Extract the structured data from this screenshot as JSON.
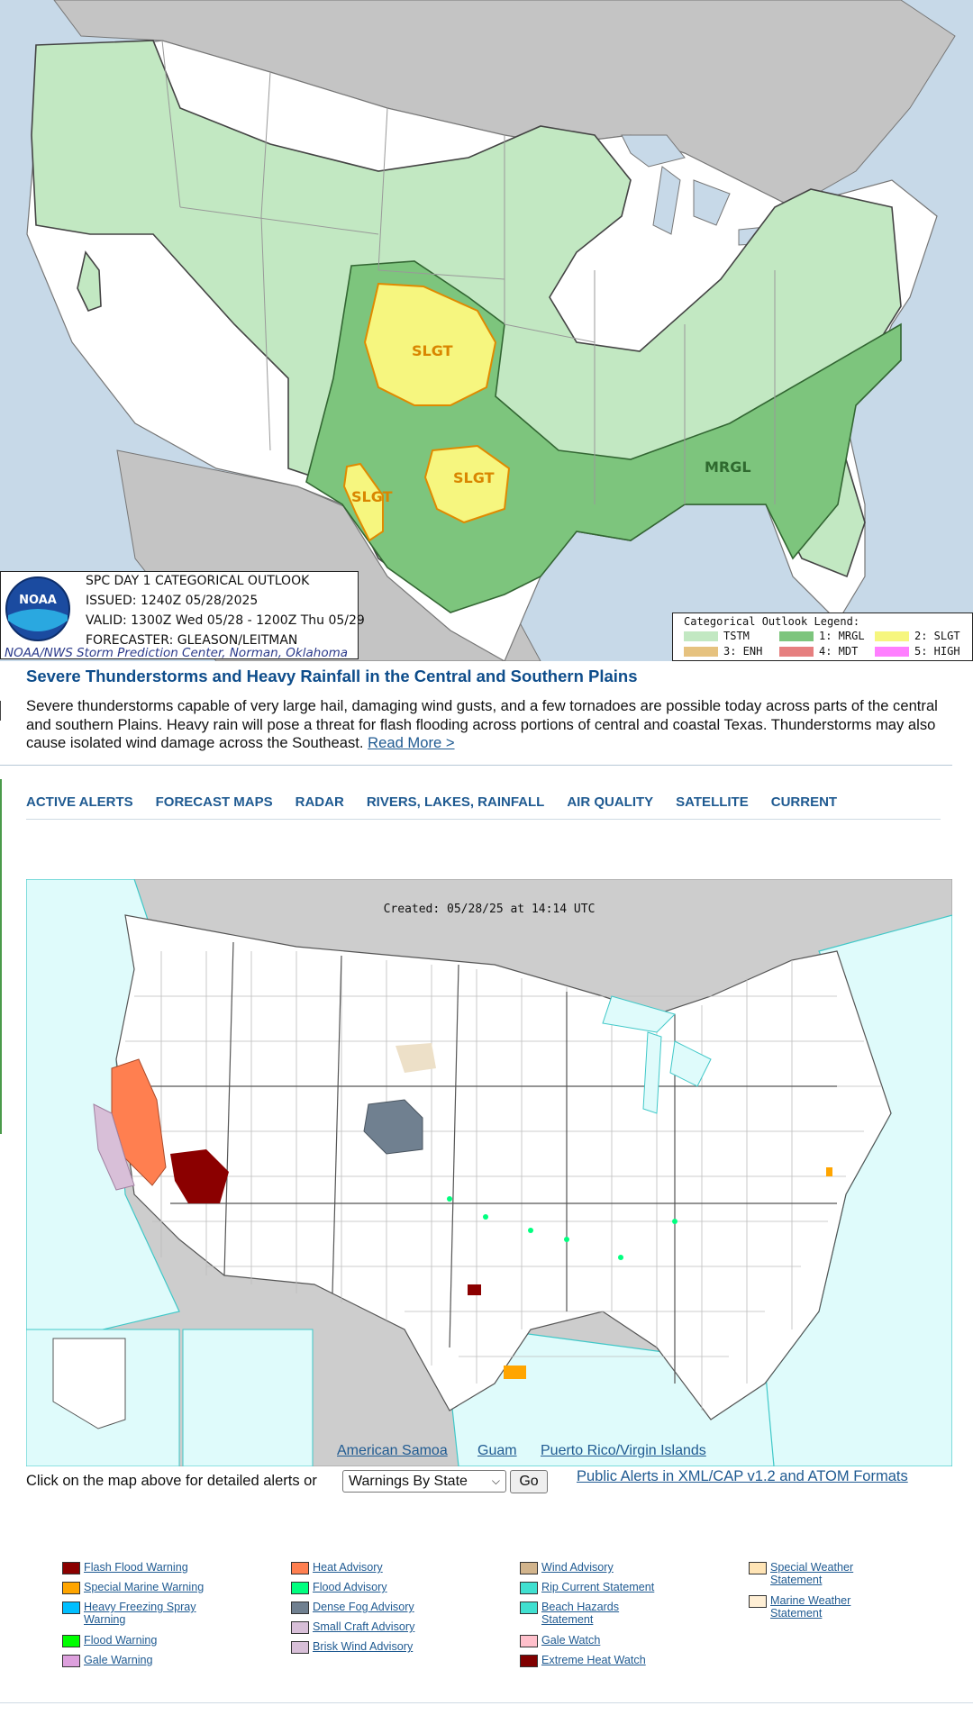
{
  "spc": {
    "title": "SPC DAY 1 CATEGORICAL OUTLOOK",
    "issued": "ISSUED: 1240Z 05/28/2025",
    "valid": "VALID: 1300Z Wed 05/28 - 1200Z Thu 05/29",
    "forecaster": "FORECASTER: GLEASON/LEITMAN",
    "footer": "NOAA/NWS Storm Prediction Center, Norman, Oklahoma",
    "logo_text": "NOAA",
    "map_labels": [
      "SLGT",
      "SLGT",
      "SLGT",
      "MRGL"
    ],
    "legend_title": "Categorical Outlook Legend:",
    "legend": [
      {
        "label": "TSTM",
        "color": "#c2e8c2"
      },
      {
        "label": "1: MRGL",
        "color": "#7dc57d"
      },
      {
        "label": "2: SLGT",
        "color": "#f6f67f"
      },
      {
        "label": "3: ENH",
        "color": "#e6c27f"
      },
      {
        "label": "4: MDT",
        "color": "#e67f7f"
      },
      {
        "label": "5: HIGH",
        "color": "#ff7fff"
      }
    ]
  },
  "headline": {
    "title": "Severe Thunderstorms and Heavy Rainfall in the Central and Southern Plains",
    "body": "Severe thunderstorms capable of very large hail, damaging wind gusts, and a few tornadoes are possible today across parts of the central and southern Plains. Heavy rain will pose a threat for flash flooding across portions of central and coastal Texas. Thunderstorms may also cause isolated wind damage across the Southeast.",
    "read_more": "Read More >"
  },
  "tabs": [
    "ACTIVE ALERTS",
    "FORECAST MAPS",
    "RADAR",
    "RIVERS, LAKES, RAINFALL",
    "AIR QUALITY",
    "SATELLITE",
    "CURRENT"
  ],
  "alerts_map": {
    "created": "Created: 05/28/25 at 14:14 UTC",
    "territories": [
      "American Samoa",
      "Guam",
      "Puerto Rico/Virgin Islands"
    ]
  },
  "controls": {
    "click_text": "Click on the map above for detailed alerts or",
    "select_value": "Warnings By State",
    "go_label": "Go",
    "cap_link": "Public Alerts in XML/CAP v1.2 and ATOM Formats"
  },
  "alert_legend": [
    {
      "label": "Flash Flood Warning",
      "color": "#8b0000"
    },
    {
      "label": "Special Marine Warning",
      "color": "#ffa500"
    },
    {
      "label": "Heavy Freezing Spray Warning",
      "color": "#00bfff"
    },
    {
      "label": "Flood Warning",
      "color": "#00ff00"
    },
    {
      "label": "Gale Warning",
      "color": "#dda0dd"
    },
    {
      "label": "Heat Advisory",
      "color": "#ff7f50"
    },
    {
      "label": "Flood Advisory",
      "color": "#00ff7f"
    },
    {
      "label": "Dense Fog Advisory",
      "color": "#708090"
    },
    {
      "label": "Small Craft Advisory",
      "color": "#d8bfd8"
    },
    {
      "label": "Brisk Wind Advisory",
      "color": "#d8bfd8"
    },
    {
      "label": "Wind Advisory",
      "color": "#d2b48c"
    },
    {
      "label": "Rip Current Statement",
      "color": "#40e0d0"
    },
    {
      "label": "Beach Hazards Statement",
      "color": "#40e0d0"
    },
    {
      "label": "Gale Watch",
      "color": "#ffc0cb"
    },
    {
      "label": "Extreme Heat Watch",
      "color": "#800000"
    },
    {
      "label": "Special Weather Statement",
      "color": "#ffe4b5"
    },
    {
      "label": "Marine Weather Statement",
      "color": "#ffefd5"
    }
  ]
}
